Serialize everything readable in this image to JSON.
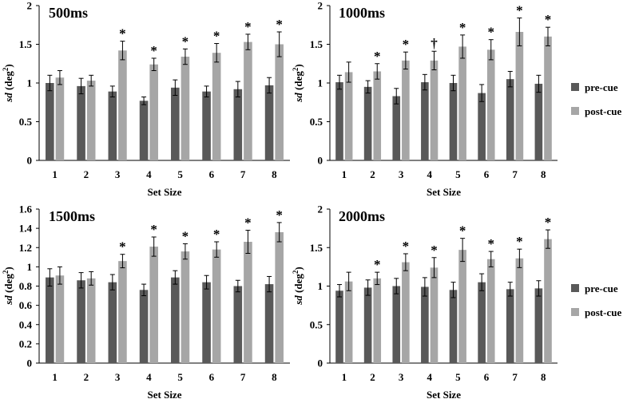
{
  "figure": {
    "legend": {
      "pre": "pre-cue",
      "post": "post-cue"
    },
    "colors": {
      "pre": "#595959",
      "post": "#a6a6a6",
      "axis": "#000000"
    }
  },
  "chart_data": [
    {
      "type": "bar",
      "title": "500ms",
      "xlabel": "Set Size",
      "ylabel": "sd (deg²)",
      "ylim": [
        0,
        2
      ],
      "yticks": [
        "0",
        "0.5",
        "1",
        "1.5",
        "2"
      ],
      "categories": [
        "1",
        "2",
        "3",
        "4",
        "5",
        "6",
        "7",
        "8"
      ],
      "series": [
        {
          "name": "pre-cue",
          "values": [
            1.0,
            0.96,
            0.89,
            0.77,
            0.94,
            0.89,
            0.92,
            0.97
          ],
          "errors": [
            0.1,
            0.1,
            0.07,
            0.05,
            0.1,
            0.07,
            0.1,
            0.1
          ]
        },
        {
          "name": "post-cue",
          "values": [
            1.07,
            1.03,
            1.42,
            1.24,
            1.34,
            1.39,
            1.53,
            1.5
          ],
          "errors": [
            0.09,
            0.07,
            0.12,
            0.08,
            0.1,
            0.12,
            0.1,
            0.16
          ]
        }
      ],
      "annotations": [
        "",
        "",
        "*",
        "*",
        "*",
        "*",
        "*",
        "*"
      ]
    },
    {
      "type": "bar",
      "title": "1000ms",
      "xlabel": "Set Size",
      "ylabel": "sd (deg²)",
      "ylim": [
        0,
        2
      ],
      "yticks": [
        "0",
        "0.5",
        "1",
        "1.5",
        "2"
      ],
      "categories": [
        "1",
        "2",
        "3",
        "4",
        "5",
        "6",
        "7",
        "8"
      ],
      "series": [
        {
          "name": "pre-cue",
          "values": [
            1.01,
            0.95,
            0.83,
            1.01,
            1.0,
            0.87,
            1.05,
            0.99
          ],
          "errors": [
            0.09,
            0.08,
            0.1,
            0.1,
            0.1,
            0.11,
            0.1,
            0.11
          ]
        },
        {
          "name": "post-cue",
          "values": [
            1.14,
            1.15,
            1.29,
            1.29,
            1.47,
            1.43,
            1.66,
            1.6
          ],
          "errors": [
            0.13,
            0.1,
            0.11,
            0.12,
            0.15,
            0.13,
            0.18,
            0.12
          ]
        }
      ],
      "annotations": [
        "",
        "*",
        "*",
        "†",
        "*",
        "*",
        "*",
        "*"
      ]
    },
    {
      "type": "bar",
      "title": "1500ms",
      "xlabel": "Set Size",
      "ylabel": "sd (deg²)",
      "ylim": [
        0,
        1.6
      ],
      "yticks": [
        "0",
        "0.2",
        "0.4",
        "0.6",
        "0.8",
        "1",
        "1.2",
        "1.4",
        "1.6"
      ],
      "categories": [
        "1",
        "2",
        "3",
        "4",
        "5",
        "6",
        "7",
        "8"
      ],
      "series": [
        {
          "name": "pre-cue",
          "values": [
            0.89,
            0.86,
            0.84,
            0.76,
            0.89,
            0.84,
            0.8,
            0.82
          ],
          "errors": [
            0.09,
            0.08,
            0.08,
            0.06,
            0.07,
            0.07,
            0.06,
            0.08
          ]
        },
        {
          "name": "post-cue",
          "values": [
            0.91,
            0.88,
            1.06,
            1.21,
            1.16,
            1.18,
            1.26,
            1.36
          ],
          "errors": [
            0.09,
            0.07,
            0.07,
            0.1,
            0.08,
            0.08,
            0.12,
            0.1
          ]
        }
      ],
      "annotations": [
        "",
        "",
        "*",
        "*",
        "*",
        "*",
        "*",
        "*"
      ]
    },
    {
      "type": "bar",
      "title": "2000ms",
      "xlabel": "Set Size",
      "ylabel": "sd (deg²)",
      "ylim": [
        0,
        2
      ],
      "yticks": [
        "0",
        "0.5",
        "1",
        "1.5",
        "2"
      ],
      "categories": [
        "1",
        "2",
        "3",
        "4",
        "5",
        "6",
        "7",
        "8"
      ],
      "series": [
        {
          "name": "pre-cue",
          "values": [
            0.94,
            0.98,
            1.0,
            0.99,
            0.95,
            1.05,
            0.96,
            0.97
          ],
          "errors": [
            0.08,
            0.1,
            0.1,
            0.12,
            0.1,
            0.11,
            0.09,
            0.1
          ]
        },
        {
          "name": "post-cue",
          "values": [
            1.06,
            1.1,
            1.31,
            1.24,
            1.47,
            1.35,
            1.36,
            1.61
          ],
          "errors": [
            0.12,
            0.08,
            0.11,
            0.13,
            0.15,
            0.1,
            0.12,
            0.12
          ]
        }
      ],
      "annotations": [
        "",
        "*",
        "*",
        "*",
        "*",
        "*",
        "*",
        "*"
      ]
    }
  ]
}
